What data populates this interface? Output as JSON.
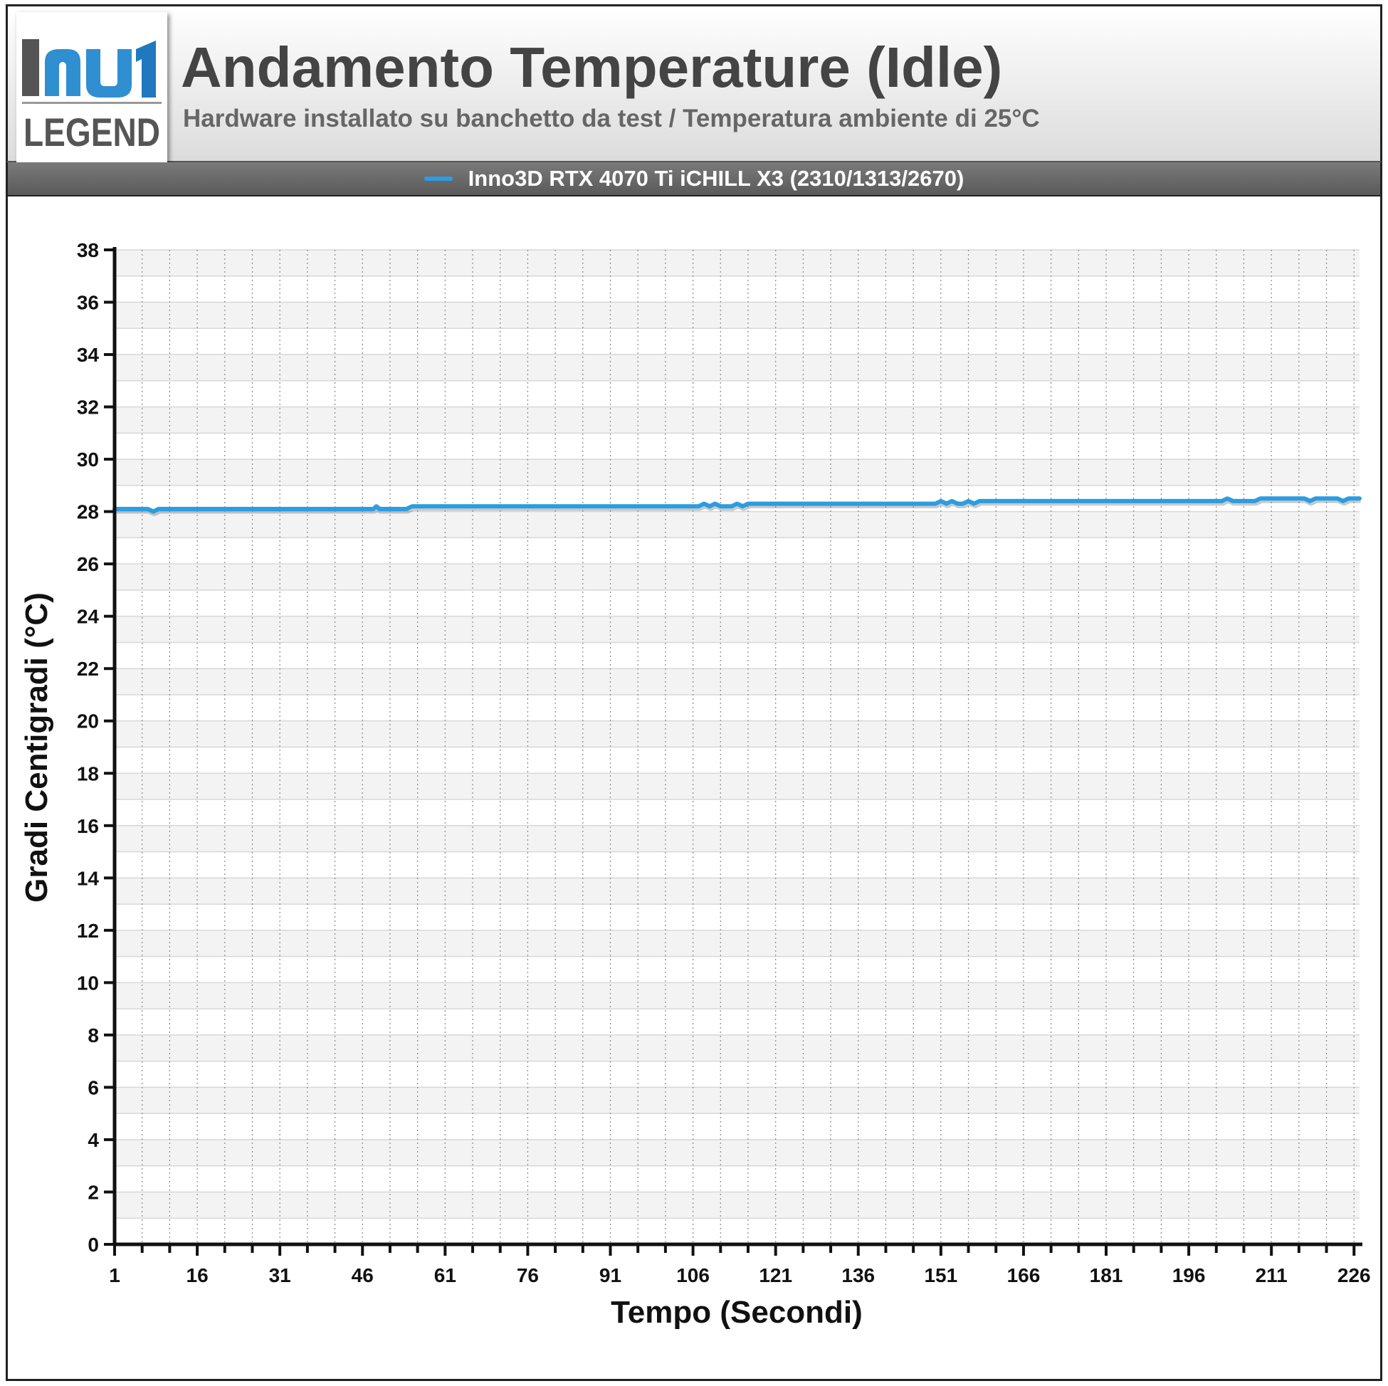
{
  "header": {
    "title": "Andamento Temperature (Idle)",
    "subtitle": "Hardware installato su banchetto da test / Temperatura ambiente di 25°C",
    "logo_text": "LEGEND"
  },
  "colors": {
    "series": "#2b9de0",
    "logo_blue": "#2f8fd0",
    "logo_gray": "#555555"
  },
  "chart_data": {
    "type": "line",
    "xlabel": "Tempo (Secondi)",
    "ylabel": "Gradi Centigradi (°C)",
    "xlim": [
      1,
      227
    ],
    "ylim": [
      0,
      38
    ],
    "x_ticks": [
      1,
      16,
      31,
      46,
      61,
      76,
      91,
      106,
      121,
      136,
      151,
      166,
      181,
      196,
      211,
      226
    ],
    "y_ticks": [
      0,
      2,
      4,
      6,
      8,
      10,
      12,
      14,
      16,
      18,
      20,
      22,
      24,
      26,
      28,
      30,
      32,
      34,
      36,
      38
    ],
    "grid": true,
    "legend_position": "top",
    "series": [
      {
        "name": "Inno3D RTX 4070 Ti iCHILL X3 (2310/1313/2670)",
        "points": [
          [
            1,
            28.1
          ],
          [
            7,
            28.1
          ],
          [
            8,
            28.0
          ],
          [
            9,
            28.1
          ],
          [
            48,
            28.1
          ],
          [
            48.5,
            28.2
          ],
          [
            49,
            28.1
          ],
          [
            54,
            28.1
          ],
          [
            55,
            28.2
          ],
          [
            107,
            28.2
          ],
          [
            108,
            28.3
          ],
          [
            109,
            28.2
          ],
          [
            110,
            28.3
          ],
          [
            111,
            28.2
          ],
          [
            113,
            28.2
          ],
          [
            114,
            28.3
          ],
          [
            115,
            28.2
          ],
          [
            116,
            28.3
          ],
          [
            150,
            28.3
          ],
          [
            151,
            28.4
          ],
          [
            152,
            28.3
          ],
          [
            153,
            28.4
          ],
          [
            154,
            28.3
          ],
          [
            155,
            28.3
          ],
          [
            156,
            28.4
          ],
          [
            157,
            28.3
          ],
          [
            158,
            28.4
          ],
          [
            202,
            28.4
          ],
          [
            203,
            28.5
          ],
          [
            204,
            28.4
          ],
          [
            208,
            28.4
          ],
          [
            209,
            28.5
          ],
          [
            217,
            28.5
          ],
          [
            218,
            28.4
          ],
          [
            219,
            28.5
          ],
          [
            223,
            28.5
          ],
          [
            224,
            28.4
          ],
          [
            225,
            28.5
          ],
          [
            227,
            28.5
          ]
        ]
      }
    ]
  }
}
